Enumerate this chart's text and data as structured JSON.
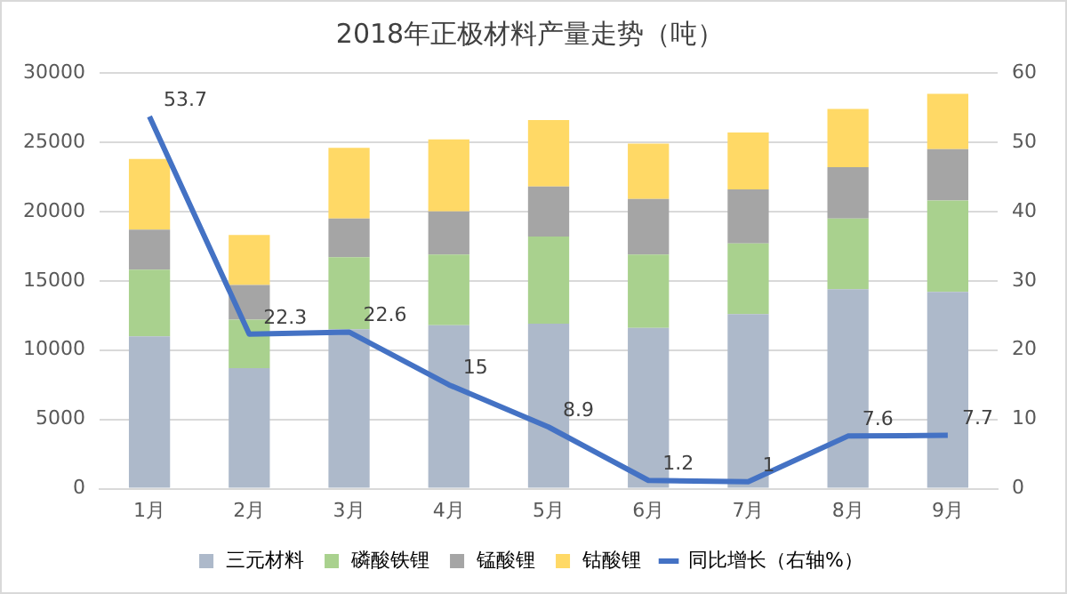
{
  "chart_data": {
    "type": "bar",
    "title": "2018年正极材料产量走势（吨）",
    "stacked": true,
    "categories": [
      "1月",
      "2月",
      "3月",
      "4月",
      "5月",
      "6月",
      "7月",
      "8月",
      "9月"
    ],
    "series": [
      {
        "name": "三元材料",
        "color": "#adb9ca",
        "values": [
          11000,
          8700,
          11500,
          11800,
          11900,
          11600,
          12600,
          14400,
          14200
        ]
      },
      {
        "name": "磷酸铁锂",
        "color": "#a9d18e",
        "values": [
          4800,
          3500,
          5200,
          5100,
          6300,
          5300,
          5100,
          5100,
          6600
        ]
      },
      {
        "name": "锰酸锂",
        "color": "#a5a5a5",
        "values": [
          2900,
          2500,
          2800,
          3100,
          3600,
          4000,
          3900,
          3700,
          3700
        ]
      },
      {
        "name": "钴酸锂",
        "color": "#ffd966",
        "values": [
          5100,
          3600,
          5100,
          5200,
          4800,
          4000,
          4100,
          4200,
          4000
        ]
      },
      {
        "name": "同比增长（右轴%）",
        "type": "line",
        "axis": "y2",
        "color": "#4472c4",
        "marker": "none",
        "values": [
          53.7,
          22.3,
          22.6,
          15,
          8.9,
          1.2,
          1,
          7.6,
          7.7
        ],
        "value_labels": [
          "53.7",
          "22.3",
          "22.6",
          "15",
          "8.9",
          "1.2",
          "1",
          "7.6",
          "7.7"
        ]
      }
    ],
    "ylim": [
      0,
      30000
    ],
    "yticks": [
      0,
      5000,
      10000,
      15000,
      20000,
      25000,
      30000
    ],
    "y2lim": [
      0,
      60
    ],
    "y2ticks": [
      0,
      10,
      20,
      30,
      40,
      50,
      60
    ],
    "grid": "y",
    "legend": "bottom"
  }
}
